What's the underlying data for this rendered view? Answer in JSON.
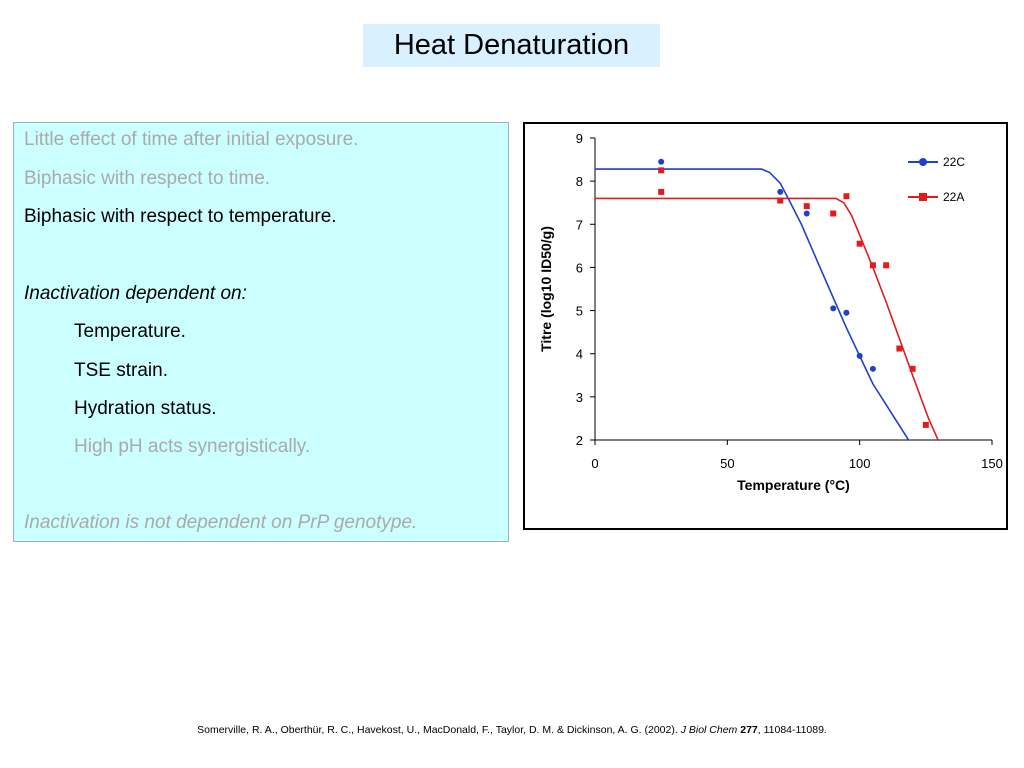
{
  "slide": {
    "title": "Heat Denaturation",
    "bullets": [
      {
        "text": "Little effect of time after initial exposure.",
        "color": "#aaaaaa",
        "italic": false,
        "indent": false
      },
      {
        "text": "Biphasic with respect to time.",
        "color": "#aaaaaa",
        "italic": false,
        "indent": false
      },
      {
        "text": "Biphasic with respect to temperature.",
        "color": "#000000",
        "italic": false,
        "indent": false
      },
      {
        "text": "Inactivation dependent on:",
        "color": "#000000",
        "italic": true,
        "indent": false
      },
      {
        "text": "Temperature.",
        "color": "#000000",
        "italic": false,
        "indent": true
      },
      {
        "text": "TSE strain.",
        "color": "#000000",
        "italic": false,
        "indent": true
      },
      {
        "text": "Hydration status.",
        "color": "#000000",
        "italic": false,
        "indent": true
      },
      {
        "text": "High pH acts synergistically.",
        "color": "#aaaaaa",
        "italic": false,
        "indent": true
      },
      {
        "text": "Inactivation is not dependent on PrP genotype.",
        "color": "#aaaaaa",
        "italic": true,
        "indent": false
      }
    ],
    "citation": {
      "authors": "Somerville, R. A., Oberthür, R. C., Havekost, U., MacDonald, F., Taylor, D. M. & Dickinson, A. G. (2002).",
      "journal": "J Biol Chem",
      "volume": "277",
      "pages": ", 11084-11089."
    }
  },
  "chart_data": {
    "type": "scatter",
    "xlabel": "Temperature (°C)",
    "ylabel": "Titre (log10 ID50/g)",
    "xlim": [
      0,
      150
    ],
    "ylim": [
      2,
      9
    ],
    "xticks": [
      "0",
      "50",
      "100",
      "150"
    ],
    "yticks": [
      "2",
      "3",
      "4",
      "5",
      "6",
      "7",
      "8",
      "9"
    ],
    "grid": false,
    "legend_position": "top-right",
    "series": [
      {
        "name": "22C",
        "color": "#1f3fcf",
        "marker": "circle",
        "points": [
          [
            25,
            8.45
          ],
          [
            70,
            7.75
          ],
          [
            80,
            7.25
          ],
          [
            90,
            5.05
          ],
          [
            95,
            4.95
          ],
          [
            100,
            3.95
          ],
          [
            105,
            3.65
          ]
        ],
        "fit": [
          [
            0,
            8.28
          ],
          [
            63,
            8.28
          ],
          [
            66,
            8.2
          ],
          [
            70,
            7.95
          ],
          [
            73,
            7.6
          ],
          [
            78,
            7.0
          ],
          [
            85,
            6.0
          ],
          [
            95,
            4.6
          ],
          [
            105,
            3.3
          ],
          [
            119,
            1.95
          ]
        ]
      },
      {
        "name": "22A",
        "color": "#e21c1c",
        "marker": "square",
        "points": [
          [
            25,
            8.25
          ],
          [
            25,
            7.75
          ],
          [
            70,
            7.55
          ],
          [
            80,
            7.42
          ],
          [
            90,
            7.25
          ],
          [
            95,
            7.65
          ],
          [
            100,
            6.55
          ],
          [
            105,
            6.05
          ],
          [
            110,
            6.05
          ],
          [
            115,
            4.12
          ],
          [
            120,
            3.65
          ],
          [
            125,
            2.35
          ]
        ],
        "fit": [
          [
            0,
            7.6
          ],
          [
            91,
            7.6
          ],
          [
            94,
            7.5
          ],
          [
            97,
            7.2
          ],
          [
            100,
            6.75
          ],
          [
            105,
            6.0
          ],
          [
            110,
            5.2
          ],
          [
            115,
            4.35
          ],
          [
            120,
            3.5
          ],
          [
            126,
            2.5
          ],
          [
            130,
            1.95
          ]
        ]
      }
    ]
  }
}
